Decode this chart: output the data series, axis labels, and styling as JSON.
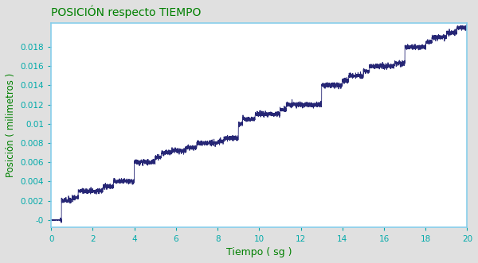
{
  "title": "POSICIÓN respecto TIEMPO",
  "xlabel": "Tiempo ( sg )",
  "ylabel": "Posición ( milimetros )",
  "title_color": "#008000",
  "label_color": "#008000",
  "tick_color": "#00AAAA",
  "line_color": "#1a1a6e",
  "plot_bg_color": "#ffffff",
  "fig_bg_color": "#e8e8e8",
  "border_color": "#87CEEB",
  "xlim": [
    0,
    20
  ],
  "ylim": [
    -0.0008,
    0.0205
  ],
  "xticks": [
    0,
    2,
    4,
    6,
    8,
    10,
    12,
    14,
    16,
    18,
    20
  ],
  "yticks": [
    0,
    0.002,
    0.004,
    0.006,
    0.008,
    0.01,
    0.012,
    0.014,
    0.016,
    0.018
  ],
  "ytick_labels": [
    "-0",
    "0.002",
    "0.004",
    "0.006",
    "0.008",
    "0.01",
    "0.012",
    "0.014",
    "0.016",
    "0.018"
  ],
  "figsize": [
    6.0,
    3.31
  ],
  "dpi": 100
}
